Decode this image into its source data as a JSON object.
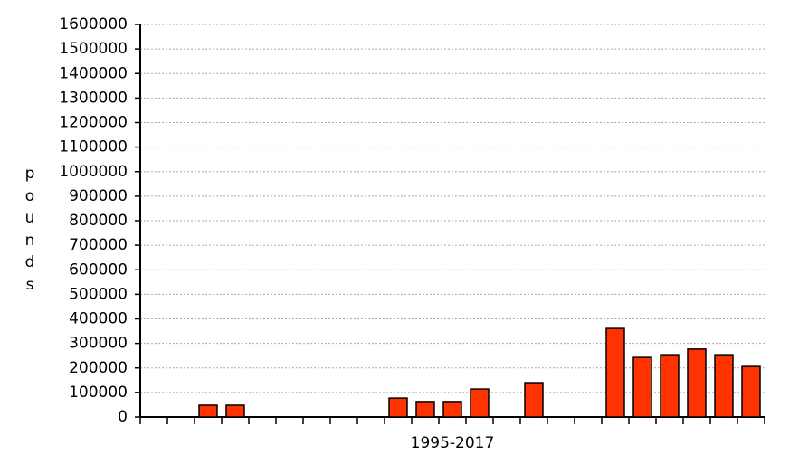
{
  "chart_data": {
    "type": "bar",
    "y_label": "pounds",
    "x_label": "1995-2017",
    "values": [
      0,
      0,
      48000,
      48000,
      0,
      0,
      0,
      0,
      0,
      77000,
      63000,
      63000,
      114000,
      0,
      140000,
      0,
      0,
      361000,
      243000,
      254000,
      277000,
      254000,
      206000
    ],
    "color": "#ff3300",
    "ylim": [
      0,
      1600000
    ],
    "yticks": [
      0,
      100000,
      200000,
      300000,
      400000,
      500000,
      600000,
      700000,
      800000,
      900000,
      1000000,
      1100000,
      1200000,
      1300000,
      1400000,
      1500000,
      1600000
    ],
    "grid": true
  }
}
